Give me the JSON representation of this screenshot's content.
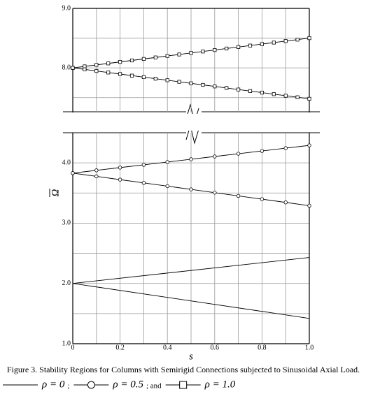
{
  "chart_data": {
    "type": "line",
    "caption": "Figure 3. Stability Regions for Columns with Semirigid Connections subjected to Sinusoidal Axial Load.",
    "xlabel": "s",
    "ylabel": "Ω",
    "xlim": [
      0,
      1
    ],
    "xticks": [
      0,
      0.2,
      0.4,
      0.6,
      0.8,
      {
        "value": 1,
        "label": "1.0"
      }
    ],
    "xminor": [
      0.1,
      0.3,
      0.5,
      0.7,
      0.9
    ],
    "grid": true,
    "color": "#000000",
    "panels": [
      {
        "ylim": [
          7.25,
          9.0
        ],
        "yticks": [
          {
            "value": 9,
            "label": "9.0"
          },
          {
            "value": 8,
            "label": "8.0"
          }
        ],
        "yminor": [
          8.5,
          7.5
        ]
      },
      {
        "ylim": [
          1,
          4.5
        ],
        "yticks": [
          {
            "value": 4,
            "label": "4.0"
          },
          {
            "value": 3,
            "label": "3.0"
          },
          {
            "value": 2,
            "label": "2.0"
          },
          {
            "value": 1,
            "label": "1.0"
          }
        ],
        "yminor": [
          3.5,
          2.5,
          1.5
        ]
      }
    ],
    "legend_separators": [
      ";",
      "; and"
    ],
    "series": [
      {
        "name": "ρ = 0",
        "marker": "none",
        "panel": 1,
        "x": [
          0,
          1
        ],
        "upper": [
          2.0,
          2.43
        ],
        "lower": [
          2.0,
          1.42
        ]
      },
      {
        "name": "ρ = 0.5",
        "marker": "circle",
        "panel": 1,
        "x": [
          0,
          0.1,
          0.2,
          0.3,
          0.4,
          0.5,
          0.6,
          0.7,
          0.8,
          0.9,
          1
        ],
        "upper": [
          3.83,
          3.876,
          3.922,
          3.968,
          4.014,
          4.06,
          4.106,
          4.152,
          4.198,
          4.244,
          4.29
        ],
        "lower": [
          3.83,
          3.776,
          3.722,
          3.668,
          3.614,
          3.56,
          3.506,
          3.452,
          3.398,
          3.344,
          3.29
        ]
      },
      {
        "name": "ρ = 1.0",
        "marker": "square",
        "panel": 0,
        "x": [
          0,
          0.05,
          0.1,
          0.15,
          0.2,
          0.25,
          0.3,
          0.35,
          0.4,
          0.45,
          0.5,
          0.55,
          0.6,
          0.65,
          0.7,
          0.75,
          0.8,
          0.85,
          0.9,
          0.95,
          1
        ],
        "upper": [
          8,
          8.025,
          8.05,
          8.075,
          8.1,
          8.125,
          8.15,
          8.175,
          8.2,
          8.225,
          8.25,
          8.275,
          8.3,
          8.325,
          8.35,
          8.375,
          8.4,
          8.425,
          8.45,
          8.475,
          8.5
        ],
        "lower": [
          8,
          7.974,
          7.948,
          7.922,
          7.896,
          7.87,
          7.844,
          7.818,
          7.792,
          7.766,
          7.74,
          7.714,
          7.688,
          7.662,
          7.636,
          7.61,
          7.584,
          7.558,
          7.532,
          7.506,
          7.48
        ]
      }
    ]
  }
}
